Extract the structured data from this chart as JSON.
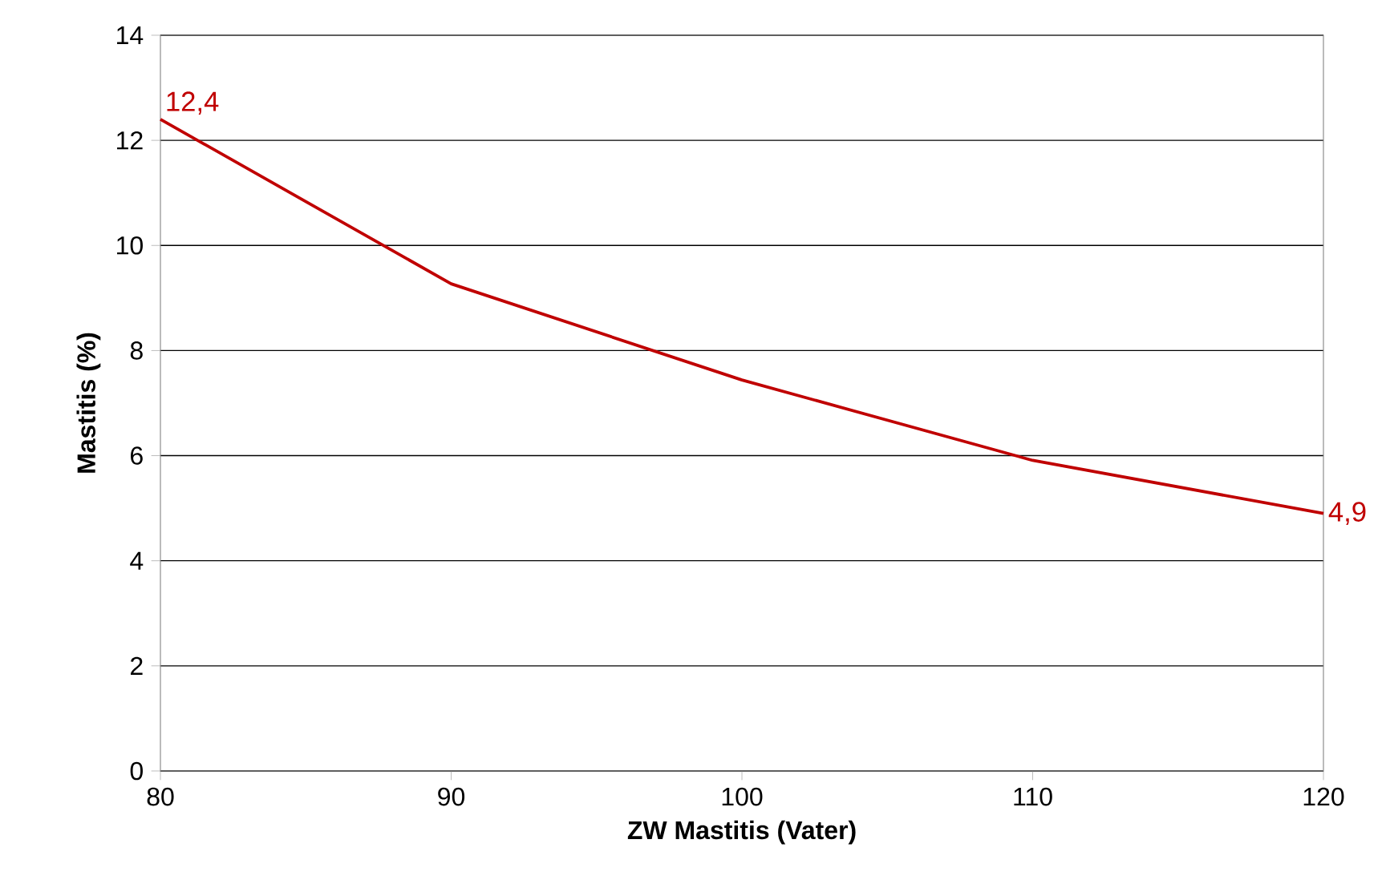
{
  "chart_data": {
    "type": "line",
    "xlabel": "ZW Mastitis (Vater)",
    "ylabel": "Mastitis (%)",
    "x": [
      80,
      90,
      100,
      110,
      120
    ],
    "series": [
      {
        "color": "#c00000",
        "values": [
          12.4,
          9.27,
          7.44,
          5.91,
          4.9
        ]
      }
    ],
    "xlim": [
      80,
      120
    ],
    "xticks": [
      80,
      90,
      100,
      110,
      120
    ],
    "ylim": [
      0,
      14
    ],
    "yticks": [
      0,
      2,
      4,
      6,
      8,
      10,
      12,
      14
    ],
    "grid": "y",
    "marker": "none",
    "line_style": "solid",
    "annotations": [
      {
        "text": "12,4",
        "x": 80,
        "y": 12.4
      },
      {
        "text": "4,9",
        "x": 120,
        "y": 4.9
      }
    ]
  }
}
